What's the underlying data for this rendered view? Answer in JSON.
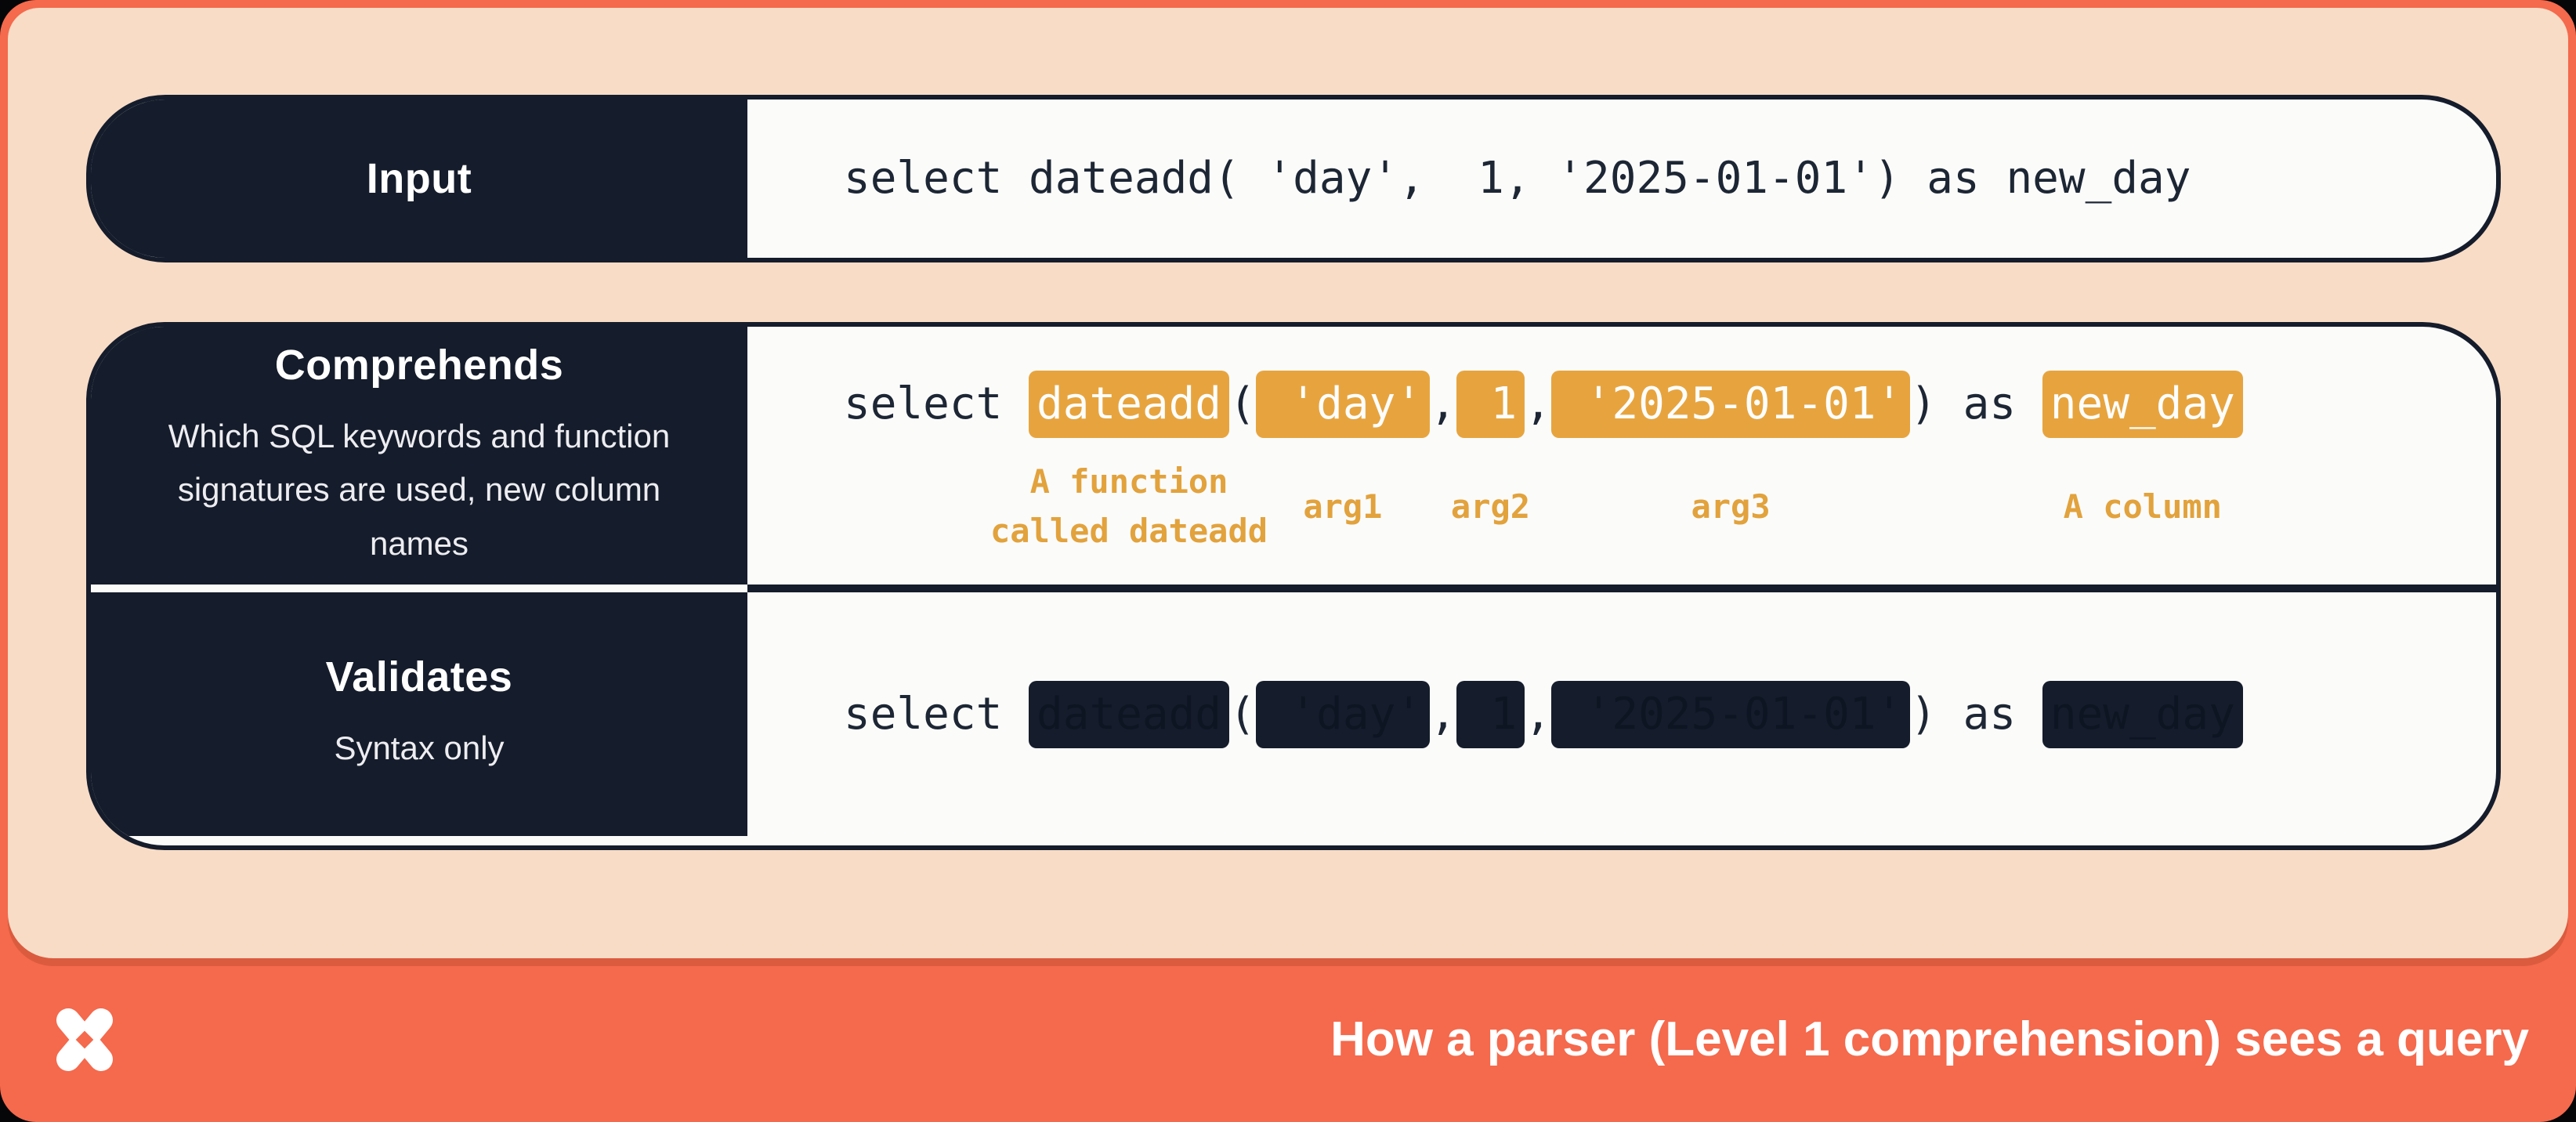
{
  "colors": {
    "coral_frame": "#F5694C",
    "peach_panel": "#F8DCC6",
    "dark_navy": "#151C2B",
    "code_background": "#FBFBFA",
    "highlight_orange": "#E7A43E",
    "annotation_orange": "#E2A23C",
    "code_text": "#1D2634"
  },
  "rows": {
    "input": {
      "label": "Input",
      "code": "select dateadd( 'day',  1, '2025-01-01') as new_day"
    },
    "comprehends": {
      "label": "Comprehends",
      "subtitle": "Which SQL keywords and function signatures are used, new column names",
      "tokens": [
        {
          "type": "plain",
          "text": "select "
        },
        {
          "type": "highlight",
          "text": "dateadd",
          "note": [
            "A function",
            "called dateadd"
          ]
        },
        {
          "type": "plain",
          "text": "("
        },
        {
          "type": "highlight",
          "text": " 'day'",
          "note": [
            "arg1"
          ]
        },
        {
          "type": "plain",
          "text": ","
        },
        {
          "type": "highlight",
          "text": " 1",
          "note": [
            "arg2"
          ]
        },
        {
          "type": "plain",
          "text": ","
        },
        {
          "type": "highlight",
          "text": " '2025-01-01'",
          "note": [
            "arg3"
          ]
        },
        {
          "type": "plain",
          "text": ") as "
        },
        {
          "type": "highlight",
          "text": "new_day",
          "note": [
            "A column"
          ]
        }
      ]
    },
    "validates": {
      "label": "Validates",
      "subtitle": "Syntax only",
      "tokens": [
        {
          "type": "plain",
          "text": "select "
        },
        {
          "type": "redacted",
          "text": "dateadd"
        },
        {
          "type": "plain",
          "text": "("
        },
        {
          "type": "redacted",
          "text": " 'day'"
        },
        {
          "type": "plain",
          "text": ","
        },
        {
          "type": "redacted",
          "text": " 1"
        },
        {
          "type": "plain",
          "text": ","
        },
        {
          "type": "redacted",
          "text": " '2025-01-01'"
        },
        {
          "type": "plain",
          "text": ") as "
        },
        {
          "type": "redacted",
          "text": "new_day"
        }
      ]
    }
  },
  "banner": {
    "title": "How a parser (Level 1 comprehension) sees a query",
    "logo": "x-star-logo"
  }
}
